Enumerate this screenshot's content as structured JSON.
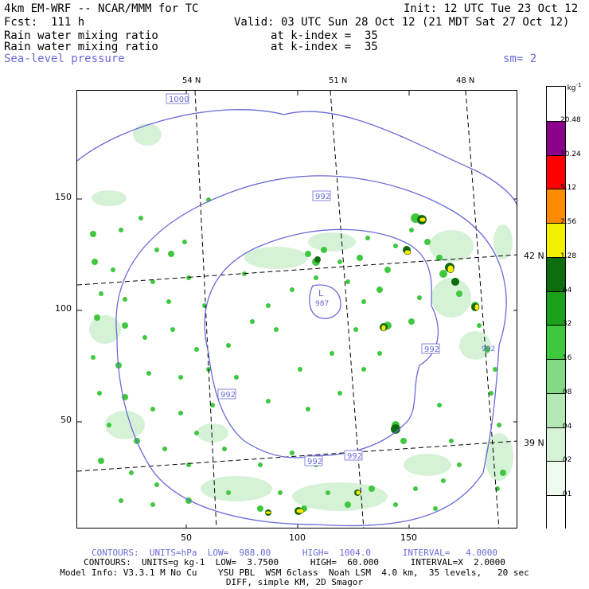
{
  "header": {
    "line1_left": "4km EM-WRF -- NCAR/MMM for TC",
    "line1_right": "Init: 12 UTC Tue 23 Oct 12",
    "line2_left": "Fcst:  111 h",
    "line2_right": "Valid: 03 UTC Sun 28 Oct 12 (21 MDT Sat 27 Oct 12)",
    "field1": "Rain water mixing ratio",
    "field1_level": "at k-index =  35",
    "field2": "Rain water mixing ratio",
    "field2_level": "at k-index =  35",
    "field3": "Sea-level pressure",
    "smoothing": "sm= 2"
  },
  "axes": {
    "x_ticks": [
      "50",
      "100",
      "150"
    ],
    "y_ticks": [
      "50",
      "100",
      "150"
    ]
  },
  "lat_lon": {
    "top": [
      "54 N",
      "51 N",
      "48 N"
    ],
    "right": [
      "42 N",
      "39 N"
    ]
  },
  "map": {
    "low_label": "L",
    "low_value": "987",
    "isobar_labels": [
      "1000",
      "992",
      "992",
      "992",
      "992",
      "992",
      "992"
    ]
  },
  "legend": {
    "units": "g kg",
    "units_exp": "-1",
    "levels": [
      "20.48",
      "10.24",
      "5.12",
      "2.56",
      "1.28",
      ".64",
      ".32",
      ".16",
      ".08",
      ".04",
      ".02",
      ".01"
    ],
    "colors": [
      "#ffffff",
      "#eefaee",
      "#d6f2d6",
      "#b4e8b4",
      "#84da84",
      "#3ec83e",
      "#1aa01a",
      "#0e6e0e",
      "#f0f000",
      "#ff8c00",
      "#ff0000",
      "#8b008b",
      "#ffffff"
    ]
  },
  "footer": {
    "contours1": "CONTOURS:  UNITS=hPa  LOW=  988.00      HIGH=  1004.0      INTERVAL=   4.0000",
    "contours2": "CONTOURS:  UNITS=g kg-1  LOW=  3.7500      HIGH=  60.000      INTERVAL=X  2.0000",
    "model_info": "Model Info: V3.3.1 M No Cu    YSU PBL  WSM 6class  Noah LSM  4.0 km,  35 levels,   20 sec",
    "model_info2": "DIFF, simple KM, 2D Smagor"
  },
  "chart_data": {
    "type": "heatmap",
    "title": "Rain water mixing ratio",
    "xlim": [
      0,
      197
    ],
    "ylim": [
      0,
      197
    ],
    "x_ticks": [
      50,
      100,
      150
    ],
    "y_ticks": [
      50,
      100,
      150
    ],
    "colorbar_levels": [
      0.01,
      0.02,
      0.04,
      0.08,
      0.16,
      0.32,
      0.64,
      1.28,
      2.56,
      5.12,
      10.24,
      20.48
    ],
    "slp_contours_hPa": [
      988,
      992,
      996,
      1000,
      1004
    ],
    "low_center": {
      "label": "L",
      "value": 987,
      "x": 111,
      "y": 103
    }
  }
}
